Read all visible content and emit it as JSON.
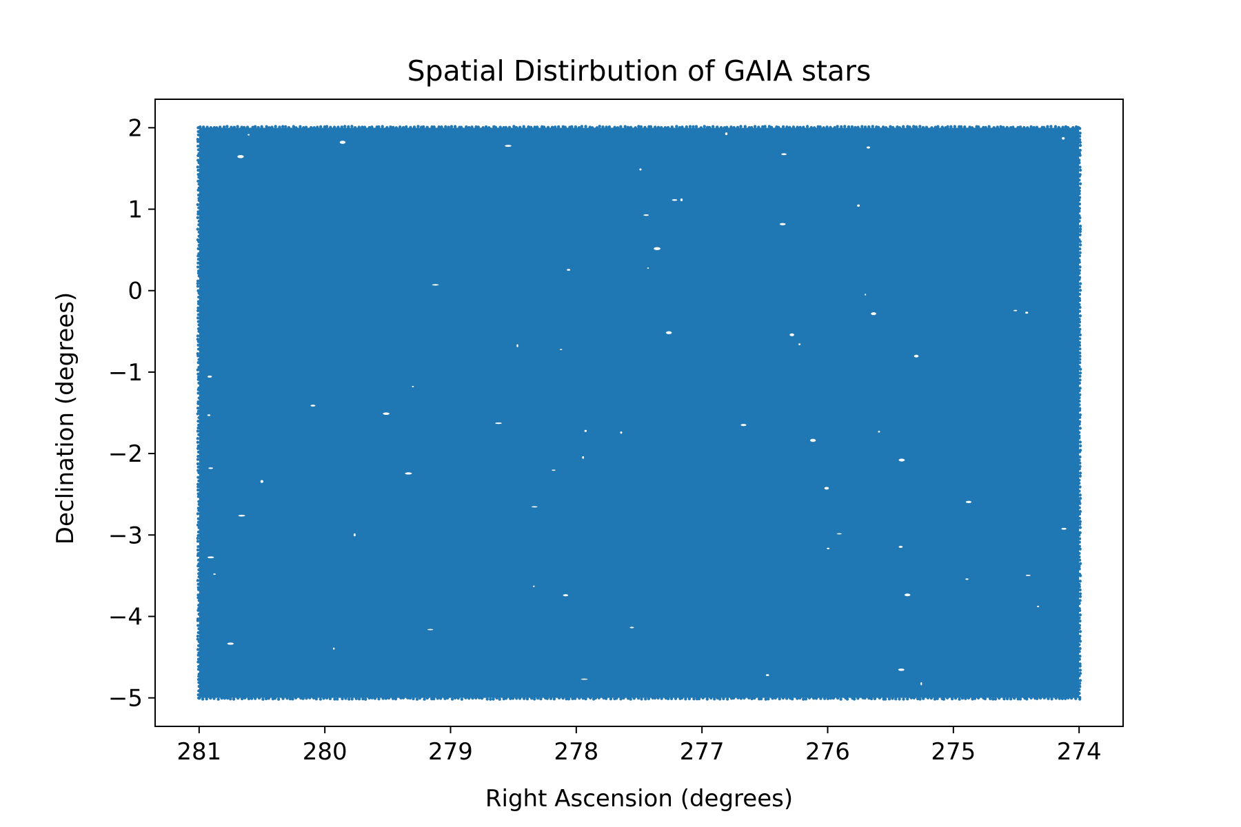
{
  "chart_data": {
    "type": "scatter",
    "title": "Spatial Distirbution of GAIA stars",
    "xlabel": "Right Ascension (degrees)",
    "ylabel": "Declination (degrees)",
    "x_inverted": true,
    "xlim": [
      281.35,
      273.65
    ],
    "ylim": [
      -5.35,
      2.35
    ],
    "xticks": [
      281,
      280,
      279,
      278,
      277,
      276,
      275,
      274
    ],
    "xtick_labels": [
      "281",
      "280",
      "279",
      "278",
      "277",
      "276",
      "275",
      "274"
    ],
    "yticks": [
      2,
      1,
      0,
      -1,
      -2,
      -3,
      -4,
      -5
    ],
    "ytick_labels": [
      "2",
      "1",
      "0",
      "−1",
      "−2",
      "−3",
      "−4",
      "−5"
    ],
    "grid": false,
    "legend": "none",
    "marker_color": "#1f77b4",
    "series": [
      {
        "description_of_extent": "dense uniform field of points",
        "ra_range": [
          274,
          281
        ],
        "dec_range": [
          -5,
          2
        ]
      }
    ]
  }
}
